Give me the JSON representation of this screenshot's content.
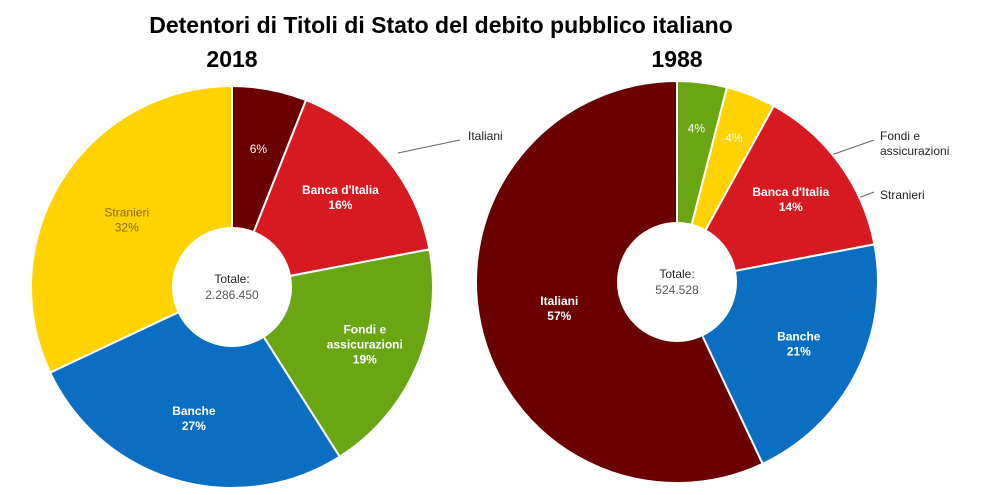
{
  "title": "Detentori di Titoli di Stato del debito pubblico italiano",
  "chart_data": [
    {
      "type": "pie",
      "title": "2018",
      "center_label": "Totale:",
      "center_value": "2.286.450",
      "slices": [
        {
          "name": "Italiani",
          "value": 6,
          "value_label": "6%",
          "color": "#6b0000"
        },
        {
          "name": "Banca d'Italia",
          "value": 16,
          "value_label": "16%",
          "color": "#d71a21"
        },
        {
          "name": "Fondi e assicurazioni",
          "name_lines": [
            "Fondi e",
            "assicurazioni"
          ],
          "value": 19,
          "value_label": "19%",
          "color": "#6aa514"
        },
        {
          "name": "Banche",
          "value": 27,
          "value_label": "27%",
          "color": "#0a6fc2"
        },
        {
          "name": "Stranieri",
          "value": 32,
          "value_label": "32%",
          "color": "#ffd200"
        }
      ]
    },
    {
      "type": "pie",
      "title": "1988",
      "center_label": "Totale:",
      "center_value": "524.528",
      "slices": [
        {
          "name": "Fondi e assicurazioni",
          "name_lines": [
            "Fondi e",
            "assicurazioni"
          ],
          "value": 4,
          "value_label": "4%",
          "color": "#6aa514"
        },
        {
          "name": "Stranieri",
          "value": 4,
          "value_label": "4%",
          "color": "#ffd200"
        },
        {
          "name": "Banca d'Italia",
          "value": 14,
          "value_label": "14%",
          "color": "#d71a21"
        },
        {
          "name": "Banche",
          "value": 21,
          "value_label": "21%",
          "color": "#0a6fc2"
        },
        {
          "name": "Italiani",
          "value": 57,
          "value_label": "57%",
          "color": "#6b0000"
        }
      ]
    }
  ]
}
